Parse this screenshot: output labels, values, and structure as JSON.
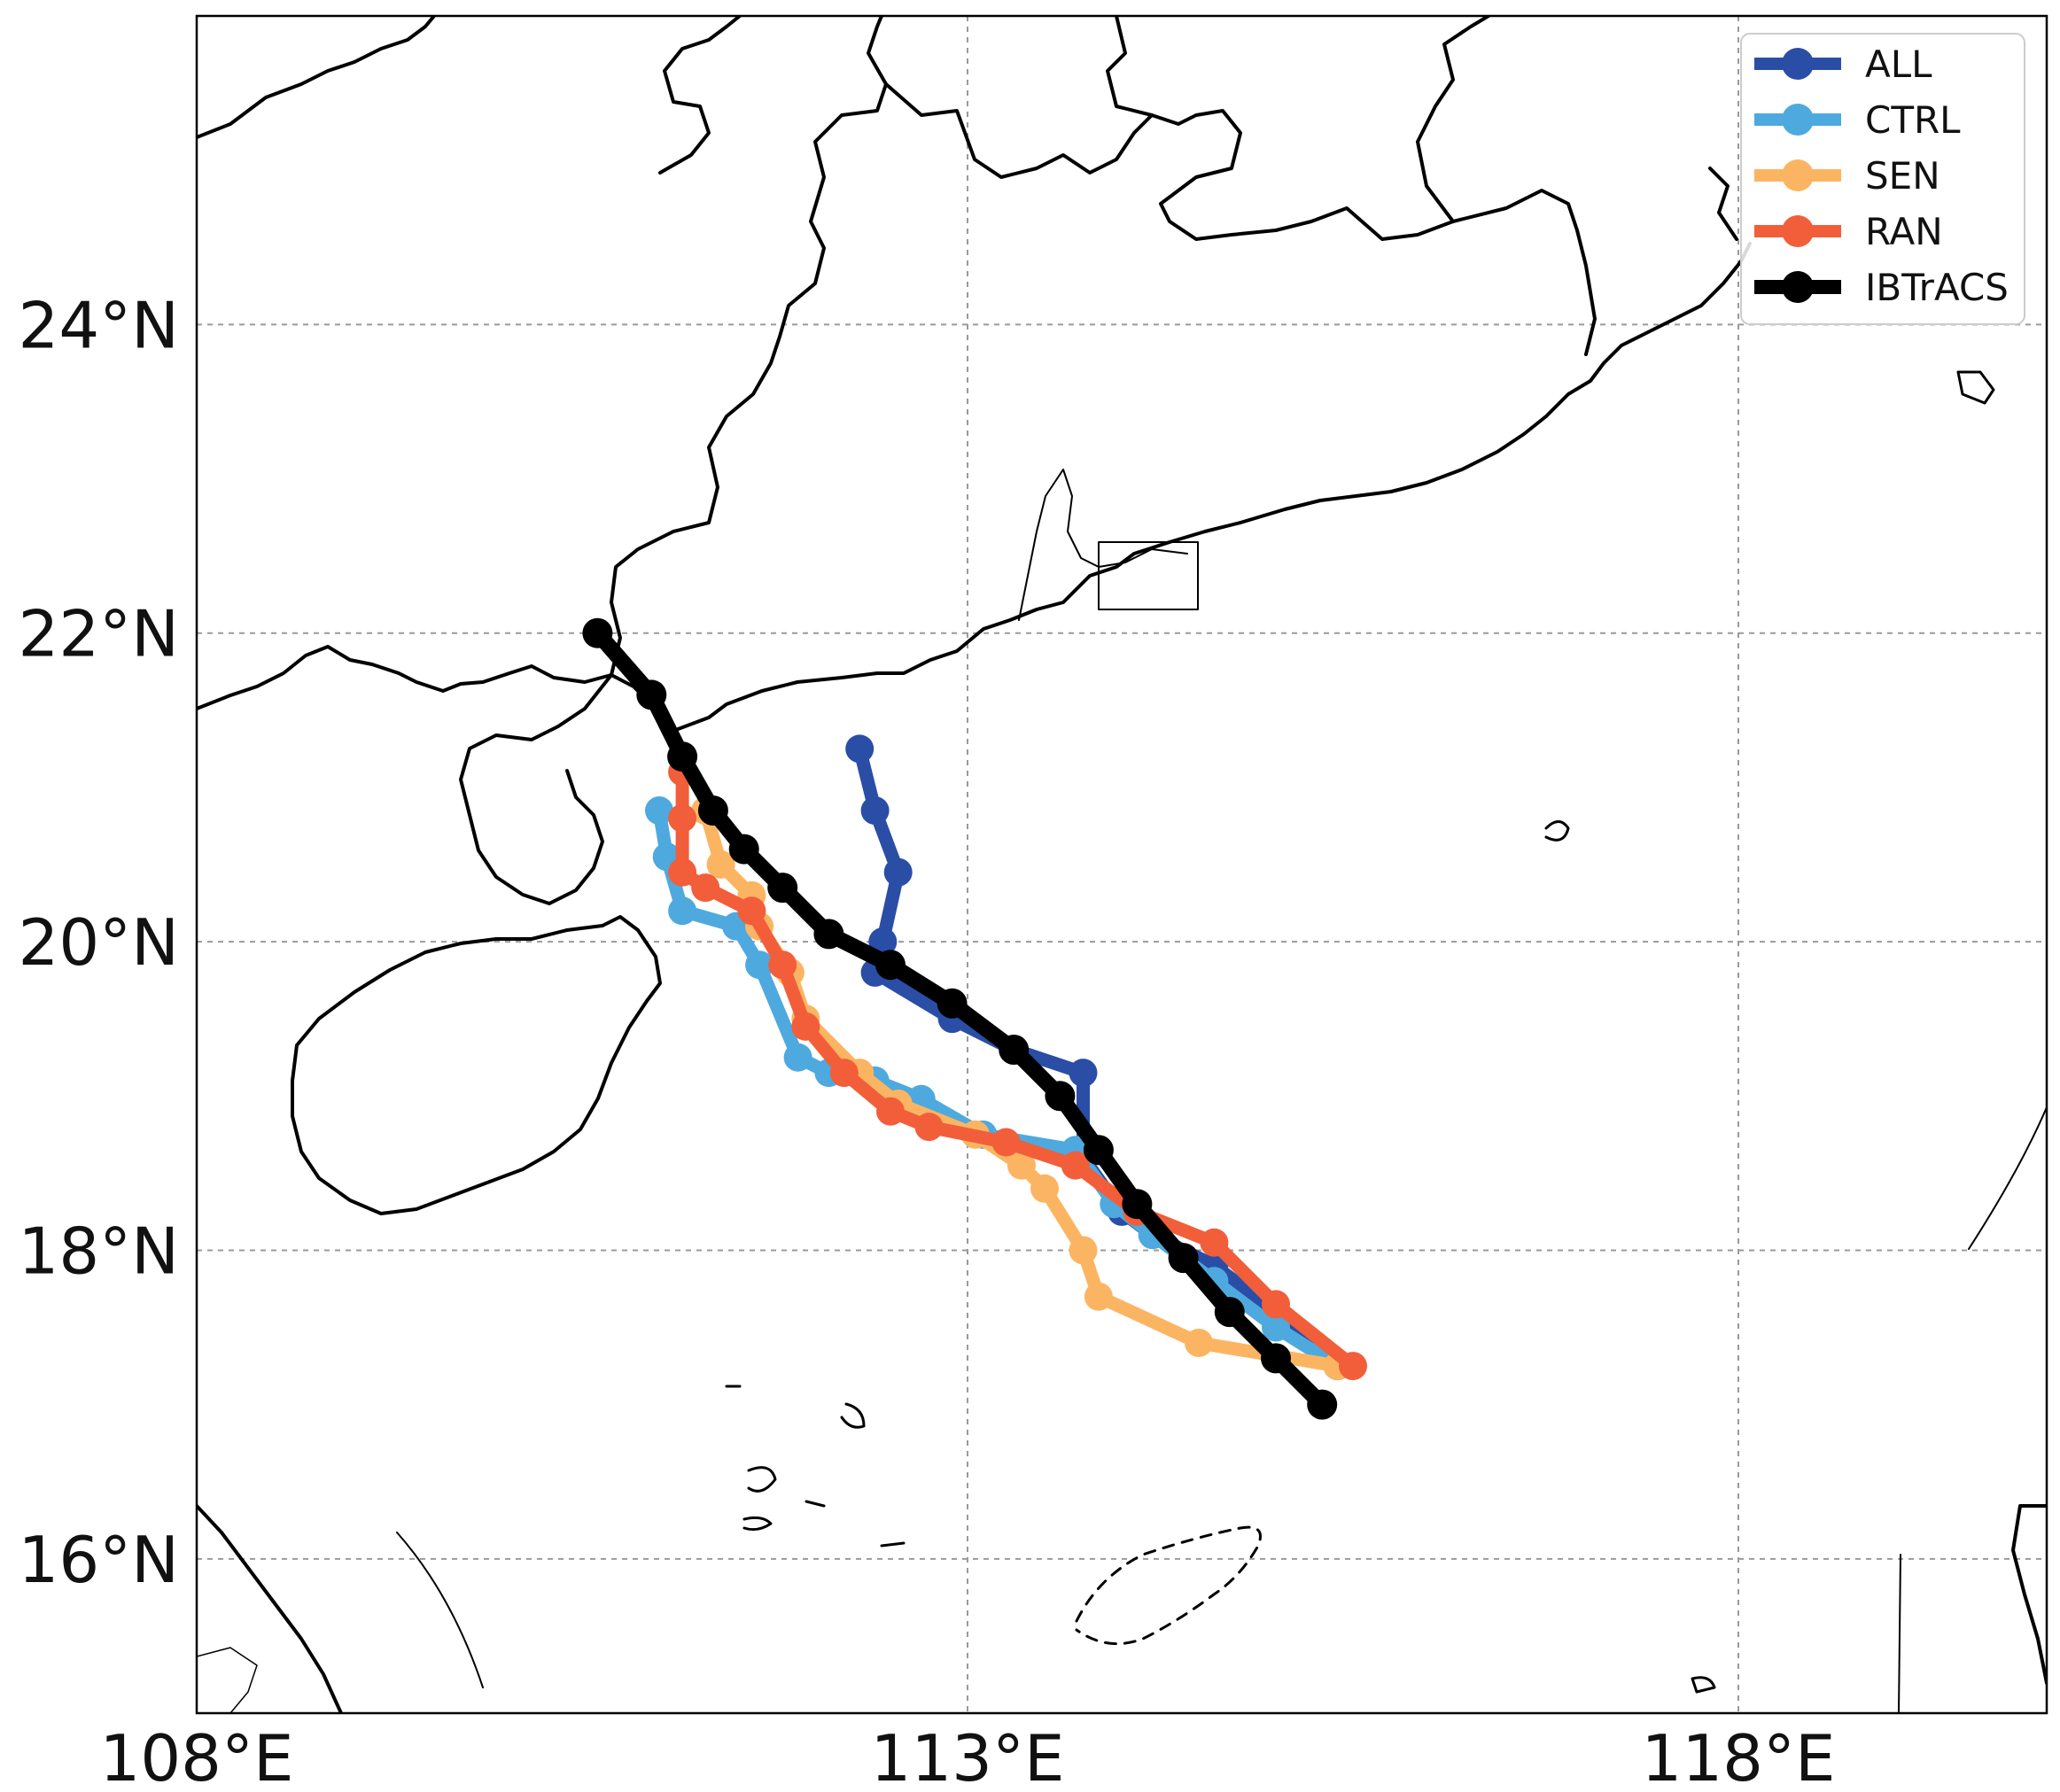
{
  "map": {
    "extent": {
      "lon": [
        108,
        120
      ],
      "lat": [
        15,
        26
      ]
    },
    "gridlines": true,
    "coastline_color": "#000000"
  },
  "axes": {
    "x_ticks": [
      {
        "value": 108,
        "label": "108°E"
      },
      {
        "value": 113,
        "label": "113°E"
      },
      {
        "value": 118,
        "label": "118°E"
      }
    ],
    "y_ticks": [
      {
        "value": 16,
        "label": "16°N"
      },
      {
        "value": 18,
        "label": "18°N"
      },
      {
        "value": 20,
        "label": "20°N"
      },
      {
        "value": 22,
        "label": "22°N"
      },
      {
        "value": 24,
        "label": "24°N"
      }
    ]
  },
  "legend": {
    "position": "top-right",
    "items": [
      {
        "label": "ALL",
        "color": "#2a4ea6"
      },
      {
        "label": "CTRL",
        "color": "#4ea9de"
      },
      {
        "label": "SEN",
        "color": "#fbb562"
      },
      {
        "label": "RAN",
        "color": "#f25e3a"
      },
      {
        "label": "IBTrACS",
        "color": "#000000"
      }
    ]
  },
  "chart_data": {
    "type": "line",
    "x_unit": "°E longitude",
    "y_unit": "°N latitude",
    "series": [
      {
        "name": "ALL",
        "color": "#2a4ea6",
        "points": [
          [
            115.4,
            17.25
          ],
          [
            115.0,
            17.6
          ],
          [
            114.6,
            17.9
          ],
          [
            114.2,
            18.1
          ],
          [
            114.0,
            18.25
          ],
          [
            113.75,
            18.6
          ],
          [
            113.75,
            19.15
          ],
          [
            113.3,
            19.3
          ],
          [
            112.9,
            19.5
          ],
          [
            112.4,
            19.8
          ],
          [
            112.45,
            20.0
          ],
          [
            112.55,
            20.45
          ],
          [
            112.4,
            20.85
          ],
          [
            112.3,
            21.25
          ]
        ]
      },
      {
        "name": "CTRL",
        "color": "#4ea9de",
        "points": [
          [
            115.4,
            17.25
          ],
          [
            115.0,
            17.5
          ],
          [
            114.6,
            17.8
          ],
          [
            114.2,
            18.1
          ],
          [
            113.95,
            18.3
          ],
          [
            113.7,
            18.65
          ],
          [
            113.1,
            18.75
          ],
          [
            112.7,
            18.98
          ],
          [
            112.4,
            19.1
          ],
          [
            112.1,
            19.15
          ],
          [
            111.9,
            19.25
          ],
          [
            111.65,
            19.85
          ],
          [
            111.5,
            20.1
          ],
          [
            111.15,
            20.2
          ],
          [
            111.05,
            20.55
          ],
          [
            111.0,
            20.85
          ]
        ]
      },
      {
        "name": "SEN",
        "color": "#fbb562",
        "points": [
          [
            115.4,
            17.25
          ],
          [
            114.5,
            17.4
          ],
          [
            113.85,
            17.7
          ],
          [
            113.75,
            18.0
          ],
          [
            113.5,
            18.4
          ],
          [
            113.35,
            18.55
          ],
          [
            113.05,
            18.75
          ],
          [
            112.55,
            18.95
          ],
          [
            112.3,
            19.15
          ],
          [
            111.95,
            19.5
          ],
          [
            111.85,
            19.8
          ],
          [
            111.65,
            20.1
          ],
          [
            111.6,
            20.3
          ],
          [
            111.4,
            20.5
          ],
          [
            111.3,
            20.85
          ]
        ]
      },
      {
        "name": "RAN",
        "color": "#f25e3a",
        "points": [
          [
            115.5,
            17.25
          ],
          [
            115.0,
            17.65
          ],
          [
            114.6,
            18.05
          ],
          [
            114.1,
            18.25
          ],
          [
            113.7,
            18.55
          ],
          [
            113.25,
            18.7
          ],
          [
            112.75,
            18.8
          ],
          [
            112.5,
            18.9
          ],
          [
            112.2,
            19.15
          ],
          [
            111.95,
            19.45
          ],
          [
            111.8,
            19.85
          ],
          [
            111.6,
            20.2
          ],
          [
            111.3,
            20.35
          ],
          [
            111.15,
            20.45
          ],
          [
            111.15,
            20.8
          ],
          [
            111.15,
            21.1
          ]
        ]
      },
      {
        "name": "IBTrACS",
        "color": "#000000",
        "points": [
          [
            115.3,
            17.0
          ],
          [
            115.0,
            17.3
          ],
          [
            114.7,
            17.6
          ],
          [
            114.4,
            17.95
          ],
          [
            114.1,
            18.3
          ],
          [
            113.85,
            18.65
          ],
          [
            113.6,
            19.0
          ],
          [
            113.3,
            19.3
          ],
          [
            112.9,
            19.6
          ],
          [
            112.5,
            19.85
          ],
          [
            112.1,
            20.05
          ],
          [
            111.8,
            20.35
          ],
          [
            111.55,
            20.6
          ],
          [
            111.35,
            20.85
          ],
          [
            111.15,
            21.2
          ],
          [
            110.95,
            21.6
          ],
          [
            110.6,
            22.0
          ]
        ]
      }
    ]
  }
}
